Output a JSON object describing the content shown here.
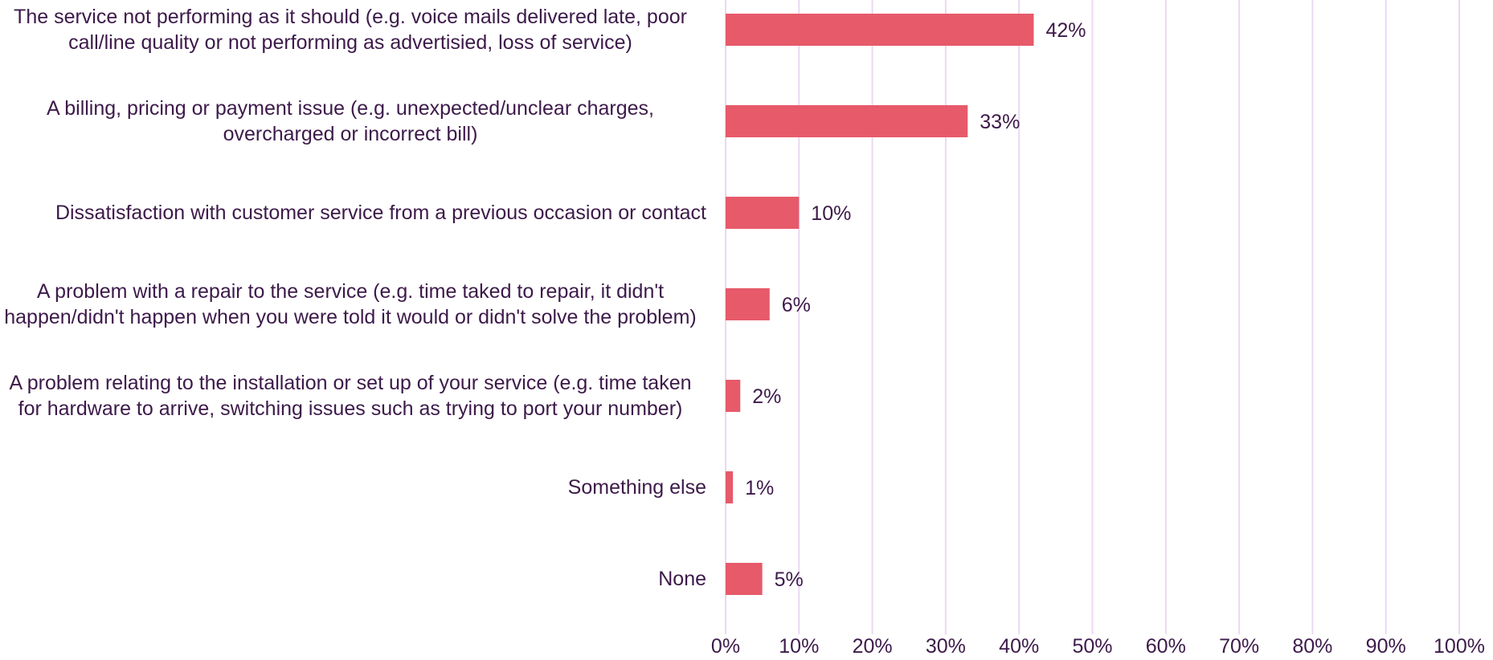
{
  "chart_data": {
    "type": "bar",
    "orientation": "horizontal",
    "title": "",
    "xlabel": "",
    "ylabel": "",
    "xlim": [
      0,
      100
    ],
    "grid": true,
    "categories": [
      "The service not performing as it should (e.g. voice mails delivered late, poor call/line quality or not performing as advertisied, loss of service)",
      "A billing, pricing or payment issue (e.g. unexpected/unclear charges, overcharged or incorrect bill)",
      "Dissatisfaction with customer service from a previous occasion or contact",
      "A problem with a repair to the service (e.g. time taked to repair, it didn't happen/didn't happen when you were told it would or didn't solve the problem)",
      "A problem relating to the installation or set up of your service (e.g. time taken for hardware to arrive, switching issues such as trying to port your number)",
      "Something else",
      "None"
    ],
    "values": [
      42,
      33,
      10,
      6,
      2,
      1,
      5
    ],
    "value_labels": [
      "42%",
      "33%",
      "10%",
      "6%",
      "2%",
      "1%",
      "5%"
    ],
    "x_ticks": [
      "0%",
      "10%",
      "20%",
      "30%",
      "40%",
      "50%",
      "60%",
      "70%",
      "80%",
      "90%",
      "100%"
    ],
    "colors": {
      "bar": "#e65a6a",
      "grid": "#ead8f2",
      "text": "#3d1a4a"
    }
  }
}
